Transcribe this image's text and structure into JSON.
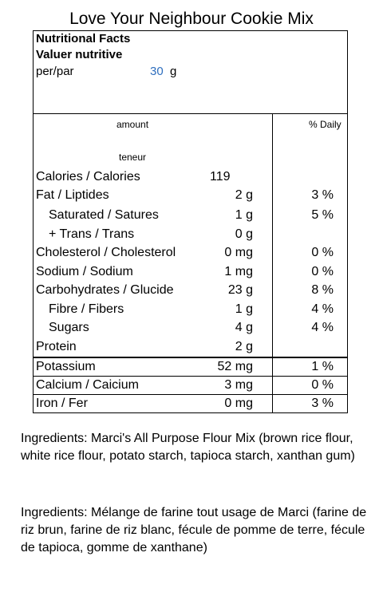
{
  "title": "Love Your Neighbour Cookie Mix",
  "label": {
    "heading_en": "Nutritional Facts",
    "heading_fr": "Valuer nutritive",
    "per_label": "per/par",
    "serving_value": "30",
    "serving_unit": "g",
    "col_amount": "amount",
    "col_amount_fr": "teneur",
    "col_daily": "% Daily",
    "rows": [
      {
        "name": "Calories / Calories",
        "amount": "119",
        "daily": ""
      },
      {
        "name": "Fat / Liptides",
        "amount": "2 g",
        "daily": "3 %"
      },
      {
        "name": "Saturated / Satures",
        "amount": "1 g",
        "daily": "5 %"
      },
      {
        "name": "+ Trans / Trans",
        "amount": "0 g",
        "daily": ""
      },
      {
        "name": "Cholesterol / Cholesterol",
        "amount": "0 mg",
        "daily": "0 %"
      },
      {
        "name": "Sodium / Sodium",
        "amount": "1 mg",
        "daily": "0 %"
      },
      {
        "name": "Carbohydrates / Glucide",
        "amount": "23 g",
        "daily": "8 %"
      },
      {
        "name": "Fibre / Fibers",
        "amount": "1 g",
        "daily": "4 %"
      },
      {
        "name": "Sugars",
        "amount": "4 g",
        "daily": "4 %"
      },
      {
        "name": "Protein",
        "amount": "2 g",
        "daily": ""
      },
      {
        "name": "Potassium",
        "amount": "52 mg",
        "daily": "1 %"
      },
      {
        "name": "Calcium / Caicium",
        "amount": "3 mg",
        "daily": "0 %"
      },
      {
        "name": "Iron / Fer",
        "amount": "0 mg",
        "daily": "3 %"
      }
    ]
  },
  "ingredients_en": "Ingredients: Marci's All Purpose Flour Mix (brown rice flour, white rice flour, potato starch, tapioca starch, xanthan gum)",
  "ingredients_fr": "Ingredients: Mélange de farine tout usage de Marci (farine de riz brun, farine de riz blanc, fécule de pomme de terre, fécule de tapioca, gomme de xanthane)"
}
